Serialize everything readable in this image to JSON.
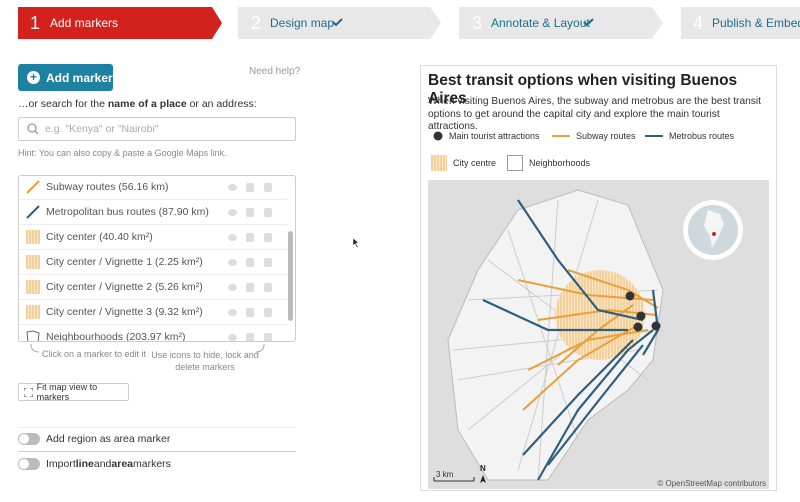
{
  "steps": [
    {
      "number": "1",
      "label": "Add markers"
    },
    {
      "number": "2",
      "label": "Design map"
    },
    {
      "number": "3",
      "label": "Annotate & Layout"
    },
    {
      "number": "4",
      "label": "Publish & Embed"
    }
  ],
  "add_marker": "Add marker",
  "help": "Need help?",
  "search": {
    "label_parts": [
      "…or search for the ",
      "name of a place",
      " or an address:"
    ],
    "placeholder": "e.g. \"Kenya\" or \"Nairobi\"",
    "hint": "Hint: You can also copy & paste a Google Maps link."
  },
  "markers": [
    "Subway routes (56.16 km)",
    "Metropolitan bus routes (87.90 km)",
    "City center (40.40 km²)",
    "City center / Vignette 1 (2.25 km²)",
    "City center / Vignette 2 (5.26 km²)",
    "City center / Vignette 3 (9.32 km²)",
    "Neighbourhoods (203.97 km²)"
  ],
  "list_hints": [
    "Click on a marker to edit it",
    "Use icons to hide, lock and delete markers"
  ],
  "fit_button": "Fit map view to markers",
  "toggles": [
    {
      "parts": [
        "Add region as area marker"
      ]
    },
    {
      "parts": [
        "Import ",
        "line",
        " and ",
        "area",
        " markers"
      ]
    }
  ],
  "preview": {
    "title": "Best transit options when visiting Buenos Aires",
    "description": "When visiting Buenos Aires, the subway and metrobus are the best transit options to get around the capital city and explore the main tourist attractions.",
    "legend": [
      "Main tourist attractions",
      "Subway routes",
      "Metrobus routes",
      "City centre",
      "Neighborhoods"
    ],
    "scale": "3 km",
    "north": "N",
    "attribution": "© OpenStreetMap contributors"
  }
}
